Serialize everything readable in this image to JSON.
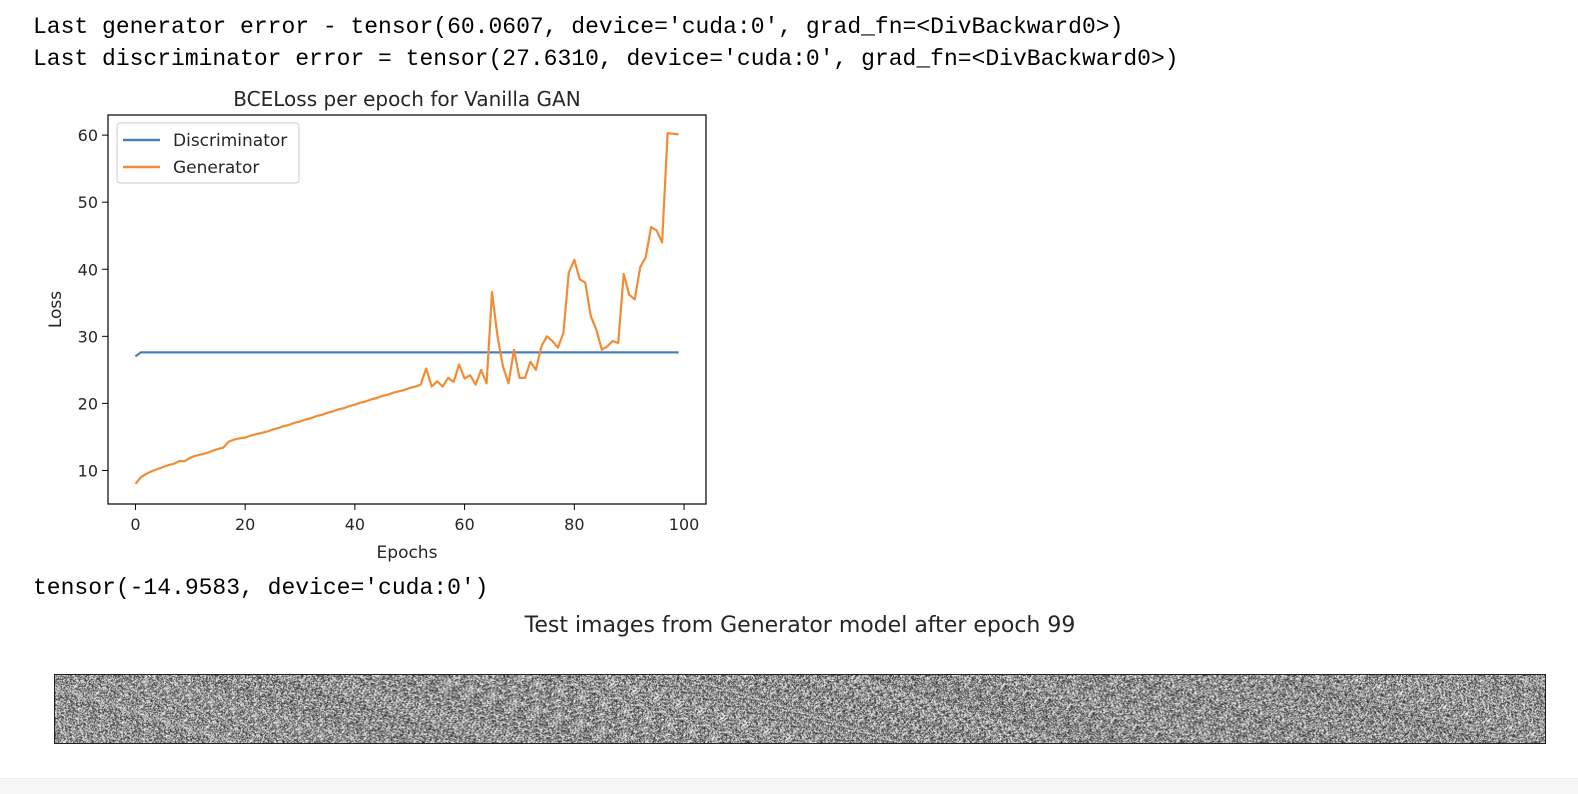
{
  "output": {
    "line1": "Last generator error - tensor(60.0607, device='cuda:0', grad_fn=<DivBackward0>)",
    "line2": "Last discriminator error = tensor(27.6310, device='cuda:0', grad_fn=<DivBackward0>)",
    "line3": "tensor(-14.9583, device='cuda:0')"
  },
  "chart_data": {
    "type": "line",
    "title": "BCELoss per epoch for Vanilla GAN",
    "xlabel": "Epochs",
    "ylabel": "Loss",
    "xlim": [
      -5,
      104
    ],
    "ylim": [
      5,
      63
    ],
    "xticks": [
      0,
      20,
      40,
      60,
      80,
      100
    ],
    "yticks": [
      10,
      20,
      30,
      40,
      50,
      60
    ],
    "grid": false,
    "legend": "top-left",
    "series": [
      {
        "name": "Discriminator",
        "color": "#4a7fbb",
        "x": [
          0,
          1,
          99
        ],
        "y": [
          27.0,
          27.6,
          27.6
        ]
      },
      {
        "name": "Generator",
        "color": "#f28c34",
        "x": [
          0,
          1,
          2,
          3,
          4,
          5,
          6,
          7,
          8,
          9,
          10,
          11,
          12,
          13,
          14,
          15,
          16,
          17,
          18,
          19,
          20,
          21,
          22,
          23,
          24,
          25,
          26,
          27,
          28,
          29,
          30,
          31,
          32,
          33,
          34,
          35,
          36,
          37,
          38,
          39,
          40,
          41,
          42,
          43,
          44,
          45,
          46,
          47,
          48,
          49,
          50,
          51,
          52,
          53,
          54,
          55,
          56,
          57,
          58,
          59,
          60,
          61,
          62,
          63,
          64,
          65,
          66,
          67,
          68,
          69,
          70,
          71,
          72,
          73,
          74,
          75,
          76,
          77,
          78,
          79,
          80,
          81,
          82,
          83,
          84,
          85,
          86,
          87,
          88,
          89,
          90,
          91,
          92,
          93,
          94,
          95,
          96,
          97,
          98,
          99
        ],
        "y": [
          8.0,
          9.0,
          9.5,
          9.9,
          10.2,
          10.5,
          10.8,
          11.0,
          11.4,
          11.4,
          11.9,
          12.2,
          12.4,
          12.6,
          12.9,
          13.2,
          13.4,
          14.3,
          14.6,
          14.8,
          14.9,
          15.2,
          15.4,
          15.6,
          15.8,
          16.1,
          16.3,
          16.6,
          16.8,
          17.1,
          17.3,
          17.6,
          17.8,
          18.1,
          18.3,
          18.6,
          18.8,
          19.1,
          19.3,
          19.6,
          19.8,
          20.1,
          20.3,
          20.6,
          20.8,
          21.1,
          21.3,
          21.6,
          21.8,
          22.0,
          22.3,
          22.5,
          22.8,
          25.2,
          22.5,
          23.3,
          22.5,
          23.8,
          23.2,
          25.8,
          23.7,
          24.2,
          22.8,
          25.0,
          23.0,
          36.6,
          30.0,
          25.5,
          23.0,
          28.0,
          23.8,
          23.8,
          26.2,
          25.0,
          28.5,
          30.0,
          29.3,
          28.3,
          30.5,
          39.5,
          41.4,
          38.5,
          38.0,
          33.0,
          31.0,
          28.0,
          28.5,
          29.3,
          29.0,
          39.3,
          36.2,
          35.5,
          40.3,
          41.8,
          46.3,
          45.8,
          44.0,
          60.3,
          60.2,
          60.1
        ]
      }
    ]
  },
  "test_images": {
    "title": "Test images from Generator model after epoch 99"
  }
}
